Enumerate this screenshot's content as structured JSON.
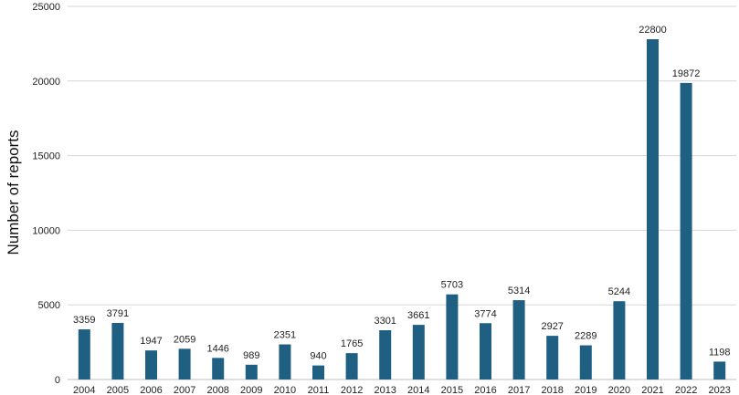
{
  "chart_data": {
    "type": "bar",
    "title": "",
    "xlabel": "",
    "ylabel": "Number of reports",
    "ylim": [
      0,
      25000
    ],
    "yticks": [
      0,
      5000,
      10000,
      15000,
      20000,
      25000
    ],
    "grid": true,
    "legend": "none",
    "bar_color": "#1f5f82",
    "categories": [
      "2004",
      "2005",
      "2006",
      "2007",
      "2008",
      "2009",
      "2010",
      "2011",
      "2012",
      "2013",
      "2014",
      "2015",
      "2016",
      "2017",
      "2018",
      "2019",
      "2020",
      "2021",
      "2022",
      "2023"
    ],
    "values": [
      3359,
      3791,
      1947,
      2059,
      1446,
      989,
      2351,
      940,
      1765,
      3301,
      3661,
      5703,
      3774,
      5314,
      2927,
      2289,
      5244,
      22800,
      19872,
      1198
    ],
    "data_labels": [
      "3359",
      "3791",
      "1947",
      "2059",
      "1446",
      "989",
      "2351",
      "940",
      "1765",
      "3301",
      "3661",
      "5703",
      "3774",
      "5314",
      "2927",
      "2289",
      "5244",
      "22800",
      "19872",
      "1198"
    ]
  }
}
